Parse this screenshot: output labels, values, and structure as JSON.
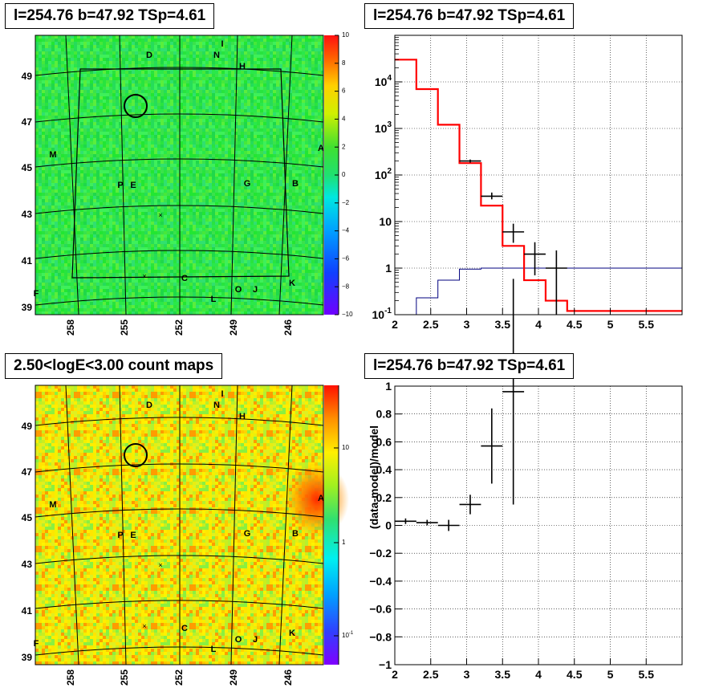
{
  "panels": {
    "map_top": {
      "title": "l=254.76 b=47.92 TSp=4.61"
    },
    "spectrum": {
      "title": "l=254.76 b=47.92 TSp=4.61"
    },
    "map_bottom": {
      "title": "2.50<logE<3.00 count maps"
    },
    "residual": {
      "title": "l=254.76 b=47.92 TSp=4.61"
    }
  },
  "colors": {
    "model": "#ff0000",
    "background": "#00007f",
    "data": "#000000"
  },
  "chart_data": [
    {
      "type": "heatmap",
      "name": "significance-map",
      "xticks": [
        "258",
        "255",
        "252",
        "249",
        "246"
      ],
      "yticks": [
        "49",
        "47",
        "45",
        "43",
        "41",
        "39"
      ],
      "colorbar": {
        "min": -10,
        "max": 10,
        "ticks": [
          "10",
          "8",
          "6",
          "4",
          "2",
          "0",
          "−2",
          "−4",
          "−6",
          "−8",
          "−10"
        ]
      },
      "source_labels": [
        "D",
        "I",
        "N",
        "H",
        "M",
        "P",
        "E",
        "G",
        "B",
        "A",
        "C",
        "K",
        "O",
        "J",
        "L",
        "F"
      ],
      "dominant_value": 0.5
    },
    {
      "type": "line",
      "name": "energy-spectrum",
      "x_range": [
        2,
        6
      ],
      "y_scale": "log",
      "y_range": [
        0.1,
        100000
      ],
      "xticks": [
        "2",
        "2.5",
        "3",
        "3.5",
        "4",
        "4.5",
        "5",
        "5.5"
      ],
      "yticks": [
        "10^4",
        "10^3",
        "10^2",
        "10",
        "1",
        "10^-1"
      ],
      "model_hist": {
        "edges": [
          2.0,
          2.3,
          2.6,
          2.9,
          3.2,
          3.5,
          3.8,
          4.1,
          4.4,
          6.0
        ],
        "values": [
          30000,
          7000,
          1200,
          180,
          22,
          3,
          0.55,
          0.2,
          0.12
        ]
      },
      "background_hist": {
        "edges": [
          2.3,
          2.6,
          2.9,
          3.2,
          6.0
        ],
        "values": [
          0.23,
          0.55,
          0.95,
          1.0
        ]
      },
      "data_points": [
        {
          "x": 3.05,
          "dx": 0.15,
          "y": 200,
          "ylo": 185,
          "yhi": 215
        },
        {
          "x": 3.35,
          "dx": 0.15,
          "y": 35,
          "ylo": 30,
          "yhi": 42
        },
        {
          "x": 3.65,
          "dx": 0.15,
          "y": 6,
          "ylo": 3.5,
          "yhi": 9
        },
        {
          "x": 3.95,
          "dx": 0.15,
          "y": 2,
          "ylo": 0.7,
          "yhi": 3.6
        },
        {
          "x": 4.25,
          "dx": 0.15,
          "y": 1,
          "ylo": 0.1,
          "yhi": 2.4
        }
      ]
    },
    {
      "type": "heatmap",
      "name": "count-map",
      "xticks": [
        "258",
        "255",
        "252",
        "249",
        "246"
      ],
      "yticks": [
        "49",
        "47",
        "45",
        "43",
        "41",
        "39"
      ],
      "colorbar": {
        "scale": "log",
        "ticks": [
          "10",
          "1",
          "10^-1"
        ]
      },
      "source_labels": [
        "D",
        "I",
        "N",
        "H",
        "M",
        "P",
        "E",
        "G",
        "B",
        "A",
        "C",
        "K",
        "O",
        "J",
        "L",
        "F"
      ]
    },
    {
      "type": "scatter",
      "name": "residuals",
      "ylabel": "(data-model)/model",
      "x_range": [
        2,
        6
      ],
      "y_range": [
        -1,
        1
      ],
      "xticks": [
        "2",
        "2.5",
        "3",
        "3.5",
        "4",
        "4.5",
        "5",
        "5.5"
      ],
      "yticks": [
        "1",
        "0.8",
        "0.6",
        "0.4",
        "0.2",
        "0",
        "−0.2",
        "−0.4",
        "−0.6",
        "−0.8",
        "−1"
      ],
      "points": [
        {
          "x": 2.15,
          "dx": 0.15,
          "y": 0.03,
          "err": 0.02
        },
        {
          "x": 2.45,
          "dx": 0.15,
          "y": 0.02,
          "err": 0.02
        },
        {
          "x": 2.75,
          "dx": 0.15,
          "y": 0.0,
          "err": 0.04
        },
        {
          "x": 3.05,
          "dx": 0.15,
          "y": 0.15,
          "err": 0.07
        },
        {
          "x": 3.35,
          "dx": 0.15,
          "y": 0.57,
          "err": 0.27
        },
        {
          "x": 3.65,
          "dx": 0.15,
          "y": 0.96,
          "err": 0.81
        }
      ]
    }
  ]
}
